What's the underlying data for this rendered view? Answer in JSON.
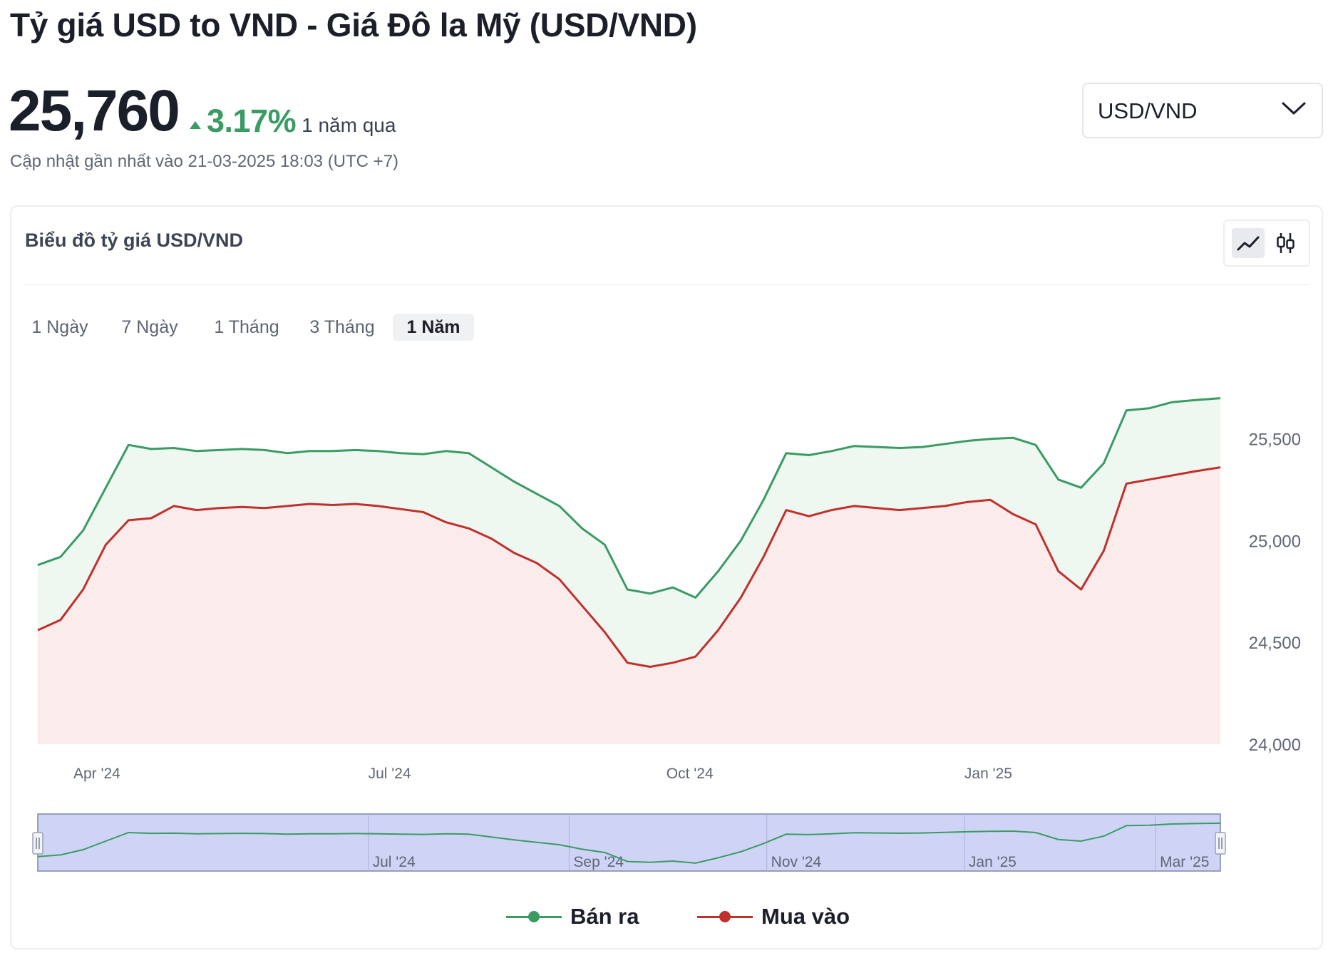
{
  "header": {
    "title": "Tỷ giá USD to VND - Giá Đô la Mỹ (USD/VND)",
    "price": "25,760",
    "change_pct": "3.17%",
    "change_period": "1 năm qua",
    "updated": "Cập nhật gần nhất vào 21-03-2025 18:03 (UTC +7)"
  },
  "pair_select": {
    "value": "USD/VND"
  },
  "card": {
    "title": "Biểu đồ tỷ giá USD/VND",
    "chart_types": [
      "line-chart-icon",
      "candlestick-icon"
    ],
    "active_chart_type": "line",
    "range_tabs": [
      "1 Ngày",
      "7 Ngày",
      "1 Tháng",
      "3 Tháng",
      "1 Năm"
    ],
    "active_range": "1 Năm"
  },
  "colors": {
    "sell": "#3a9b63",
    "buy": "#c0302c",
    "sell_fill": "#eef7f0",
    "buy_fill": "#fbecec",
    "navigator_fill": "#cfd4f6",
    "navigator_border": "#9aa0b5"
  },
  "chart_data": {
    "type": "area",
    "x_start": "2024-03-21",
    "x_end": "2025-03-21",
    "ylim": [
      24000,
      25800
    ],
    "y_ticks": [
      "25,500",
      "25,000",
      "24,500",
      "24,000"
    ],
    "y_tick_values": [
      25500,
      25000,
      24500,
      24000
    ],
    "x_ticks": [
      {
        "label": "Apr '24",
        "date": "2024-04-01"
      },
      {
        "label": "Jul '24",
        "date": "2024-07-01"
      },
      {
        "label": "Oct '24",
        "date": "2024-10-01"
      },
      {
        "label": "Jan '25",
        "date": "2025-01-01"
      }
    ],
    "navigator_ticks": [
      {
        "label": "Jul '24",
        "date": "2024-07-01"
      },
      {
        "label": "Sep '24",
        "date": "2024-09-01"
      },
      {
        "label": "Nov '24",
        "date": "2024-11-01"
      },
      {
        "label": "Jan '25",
        "date": "2025-01-01"
      },
      {
        "label": "Mar '25",
        "date": "2025-03-01"
      }
    ],
    "series": [
      {
        "name": "Bán ra",
        "points": [
          [
            "2024-03-21",
            24880
          ],
          [
            "2024-03-28",
            24920
          ],
          [
            "2024-04-04",
            25050
          ],
          [
            "2024-04-11",
            25260
          ],
          [
            "2024-04-18",
            25470
          ],
          [
            "2024-04-25",
            25450
          ],
          [
            "2024-05-02",
            25455
          ],
          [
            "2024-05-09",
            25440
          ],
          [
            "2024-05-16",
            25445
          ],
          [
            "2024-05-23",
            25450
          ],
          [
            "2024-05-30",
            25445
          ],
          [
            "2024-06-06",
            25430
          ],
          [
            "2024-06-13",
            25440
          ],
          [
            "2024-06-20",
            25440
          ],
          [
            "2024-06-27",
            25445
          ],
          [
            "2024-07-04",
            25440
          ],
          [
            "2024-07-11",
            25430
          ],
          [
            "2024-07-18",
            25425
          ],
          [
            "2024-07-25",
            25440
          ],
          [
            "2024-08-01",
            25430
          ],
          [
            "2024-08-08",
            25360
          ],
          [
            "2024-08-15",
            25290
          ],
          [
            "2024-08-22",
            25230
          ],
          [
            "2024-08-29",
            25170
          ],
          [
            "2024-09-05",
            25060
          ],
          [
            "2024-09-12",
            24980
          ],
          [
            "2024-09-19",
            24760
          ],
          [
            "2024-09-26",
            24740
          ],
          [
            "2024-10-03",
            24770
          ],
          [
            "2024-10-10",
            24720
          ],
          [
            "2024-10-17",
            24850
          ],
          [
            "2024-10-24",
            25000
          ],
          [
            "2024-10-31",
            25200
          ],
          [
            "2024-11-07",
            25430
          ],
          [
            "2024-11-14",
            25420
          ],
          [
            "2024-11-21",
            25440
          ],
          [
            "2024-11-28",
            25465
          ],
          [
            "2024-12-05",
            25460
          ],
          [
            "2024-12-12",
            25455
          ],
          [
            "2024-12-19",
            25460
          ],
          [
            "2024-12-26",
            25475
          ],
          [
            "2025-01-02",
            25490
          ],
          [
            "2025-01-09",
            25500
          ],
          [
            "2025-01-16",
            25505
          ],
          [
            "2025-01-23",
            25470
          ],
          [
            "2025-01-30",
            25300
          ],
          [
            "2025-02-06",
            25260
          ],
          [
            "2025-02-13",
            25380
          ],
          [
            "2025-02-20",
            25640
          ],
          [
            "2025-02-27",
            25650
          ],
          [
            "2025-03-06",
            25680
          ],
          [
            "2025-03-13",
            25690
          ],
          [
            "2025-03-21",
            25700
          ]
        ]
      },
      {
        "name": "Mua vào",
        "points": [
          [
            "2024-03-21",
            24560
          ],
          [
            "2024-03-28",
            24610
          ],
          [
            "2024-04-04",
            24760
          ],
          [
            "2024-04-11",
            24980
          ],
          [
            "2024-04-18",
            25100
          ],
          [
            "2024-04-25",
            25110
          ],
          [
            "2024-05-02",
            25170
          ],
          [
            "2024-05-09",
            25150
          ],
          [
            "2024-05-16",
            25160
          ],
          [
            "2024-05-23",
            25165
          ],
          [
            "2024-05-30",
            25160
          ],
          [
            "2024-06-06",
            25170
          ],
          [
            "2024-06-13",
            25180
          ],
          [
            "2024-06-20",
            25175
          ],
          [
            "2024-06-27",
            25180
          ],
          [
            "2024-07-04",
            25170
          ],
          [
            "2024-07-11",
            25155
          ],
          [
            "2024-07-18",
            25140
          ],
          [
            "2024-07-25",
            25090
          ],
          [
            "2024-08-01",
            25060
          ],
          [
            "2024-08-08",
            25010
          ],
          [
            "2024-08-15",
            24940
          ],
          [
            "2024-08-22",
            24890
          ],
          [
            "2024-08-29",
            24810
          ],
          [
            "2024-09-05",
            24680
          ],
          [
            "2024-09-12",
            24550
          ],
          [
            "2024-09-19",
            24400
          ],
          [
            "2024-09-26",
            24380
          ],
          [
            "2024-10-03",
            24400
          ],
          [
            "2024-10-10",
            24430
          ],
          [
            "2024-10-17",
            24560
          ],
          [
            "2024-10-24",
            24720
          ],
          [
            "2024-10-31",
            24920
          ],
          [
            "2024-11-07",
            25150
          ],
          [
            "2024-11-14",
            25120
          ],
          [
            "2024-11-21",
            25150
          ],
          [
            "2024-11-28",
            25170
          ],
          [
            "2024-12-05",
            25160
          ],
          [
            "2024-12-12",
            25150
          ],
          [
            "2024-12-19",
            25160
          ],
          [
            "2024-12-26",
            25170
          ],
          [
            "2025-01-02",
            25190
          ],
          [
            "2025-01-09",
            25200
          ],
          [
            "2025-01-16",
            25130
          ],
          [
            "2025-01-23",
            25080
          ],
          [
            "2025-01-30",
            24850
          ],
          [
            "2025-02-06",
            24760
          ],
          [
            "2025-02-13",
            24950
          ],
          [
            "2025-02-20",
            25280
          ],
          [
            "2025-02-27",
            25300
          ],
          [
            "2025-03-06",
            25320
          ],
          [
            "2025-03-13",
            25340
          ],
          [
            "2025-03-21",
            25360
          ]
        ]
      }
    ]
  }
}
